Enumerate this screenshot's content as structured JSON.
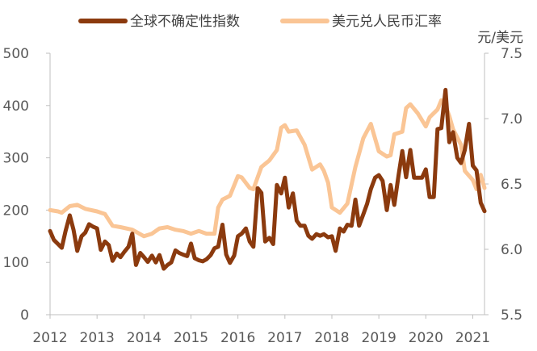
{
  "chart_data": {
    "type": "line",
    "legend_position": "top",
    "grid": false,
    "x_ticks": [
      "2012",
      "2013",
      "2014",
      "2015",
      "2016",
      "2017",
      "2018",
      "2019",
      "2020",
      "2021"
    ],
    "x_range": [
      2012.0,
      2021.25
    ],
    "left_axis": {
      "ticks": [
        "0",
        "100",
        "200",
        "300",
        "400",
        "500"
      ],
      "range": [
        0,
        500
      ]
    },
    "right_axis": {
      "unit": "元/美元",
      "ticks": [
        "5.5",
        "6.0",
        "6.5",
        "7.0",
        "7.5"
      ],
      "range": [
        5.5,
        7.5
      ]
    },
    "series": [
      {
        "name": "全球不确定性指数",
        "axis": "left",
        "color": "#8B3A0E",
        "x": [
          2012.0,
          2012.08,
          2012.17,
          2012.25,
          2012.33,
          2012.42,
          2012.5,
          2012.58,
          2012.67,
          2012.75,
          2012.83,
          2012.92,
          2013.0,
          2013.08,
          2013.17,
          2013.25,
          2013.33,
          2013.42,
          2013.5,
          2013.58,
          2013.67,
          2013.75,
          2013.83,
          2013.92,
          2014.0,
          2014.08,
          2014.17,
          2014.25,
          2014.33,
          2014.42,
          2014.5,
          2014.58,
          2014.67,
          2014.75,
          2014.83,
          2014.92,
          2015.0,
          2015.08,
          2015.17,
          2015.25,
          2015.33,
          2015.42,
          2015.5,
          2015.58,
          2015.67,
          2015.75,
          2015.83,
          2015.92,
          2016.0,
          2016.08,
          2016.17,
          2016.25,
          2016.33,
          2016.42,
          2016.5,
          2016.58,
          2016.67,
          2016.75,
          2016.83,
          2016.92,
          2017.0,
          2017.08,
          2017.17,
          2017.25,
          2017.33,
          2017.42,
          2017.5,
          2017.58,
          2017.67,
          2017.75,
          2017.83,
          2017.92,
          2018.0,
          2018.08,
          2018.17,
          2018.25,
          2018.33,
          2018.42,
          2018.5,
          2018.58,
          2018.67,
          2018.75,
          2018.83,
          2018.92,
          2019.0,
          2019.08,
          2019.17,
          2019.25,
          2019.33,
          2019.42,
          2019.5,
          2019.58,
          2019.67,
          2019.75,
          2019.83,
          2019.92,
          2020.0,
          2020.08,
          2020.17,
          2020.25,
          2020.33,
          2020.42,
          2020.5,
          2020.58,
          2020.67,
          2020.75,
          2020.83,
          2020.92,
          2021.0,
          2021.08,
          2021.17,
          2021.25
        ],
        "values": [
          160,
          143,
          135,
          128,
          160,
          190,
          162,
          122,
          150,
          157,
          173,
          168,
          165,
          124,
          140,
          133,
          103,
          117,
          110,
          120,
          130,
          155,
          95,
          118,
          110,
          101,
          113,
          100,
          114,
          88,
          95,
          100,
          123,
          118,
          115,
          112,
          136,
          108,
          104,
          102,
          106,
          114,
          127,
          130,
          172,
          115,
          99,
          113,
          150,
          155,
          165,
          140,
          130,
          242,
          233,
          140,
          147,
          135,
          248,
          232,
          262,
          205,
          232,
          180,
          170,
          170,
          151,
          145,
          154,
          151,
          154,
          148,
          150,
          122,
          165,
          159,
          172,
          170,
          220,
          170,
          192,
          212,
          240,
          262,
          267,
          256,
          200,
          248,
          210,
          267,
          313,
          263,
          315,
          262,
          262,
          262,
          278,
          225,
          225,
          355,
          357,
          430,
          330,
          349,
          300,
          290,
          315,
          365,
          285,
          276,
          214,
          198
        ]
      },
      {
        "name": "美元兑人民币汇率",
        "axis": "right",
        "color": "#FAC595",
        "x": [
          2012.0,
          2012.17,
          2012.25,
          2012.42,
          2012.58,
          2012.75,
          2013.0,
          2013.17,
          2013.33,
          2013.5,
          2013.75,
          2014.0,
          2014.17,
          2014.33,
          2014.5,
          2014.67,
          2014.83,
          2015.0,
          2015.17,
          2015.33,
          2015.5,
          2015.58,
          2015.67,
          2015.83,
          2016.0,
          2016.08,
          2016.25,
          2016.33,
          2016.5,
          2016.67,
          2016.83,
          2016.92,
          2017.0,
          2017.08,
          2017.25,
          2017.42,
          2017.58,
          2017.75,
          2017.83,
          2017.92,
          2018.0,
          2018.17,
          2018.33,
          2018.5,
          2018.67,
          2018.83,
          2019.0,
          2019.17,
          2019.25,
          2019.33,
          2019.5,
          2019.58,
          2019.67,
          2019.83,
          2020.0,
          2020.08,
          2020.25,
          2020.33,
          2020.42,
          2020.5,
          2020.58,
          2020.75,
          2020.83,
          2021.0,
          2021.08,
          2021.17,
          2021.25
        ],
        "values": [
          6.3,
          6.29,
          6.28,
          6.33,
          6.34,
          6.31,
          6.29,
          6.27,
          6.18,
          6.17,
          6.15,
          6.1,
          6.12,
          6.16,
          6.17,
          6.15,
          6.14,
          6.12,
          6.14,
          6.12,
          6.12,
          6.32,
          6.38,
          6.41,
          6.56,
          6.55,
          6.47,
          6.46,
          6.63,
          6.68,
          6.76,
          6.93,
          6.95,
          6.9,
          6.91,
          6.8,
          6.61,
          6.65,
          6.6,
          6.51,
          6.32,
          6.28,
          6.35,
          6.63,
          6.85,
          6.96,
          6.75,
          6.71,
          6.72,
          6.88,
          6.9,
          7.08,
          7.11,
          7.04,
          6.94,
          7.01,
          7.07,
          7.14,
          7.1,
          7.02,
          6.92,
          6.8,
          6.6,
          6.53,
          6.46,
          6.57,
          6.47
        ]
      }
    ]
  }
}
